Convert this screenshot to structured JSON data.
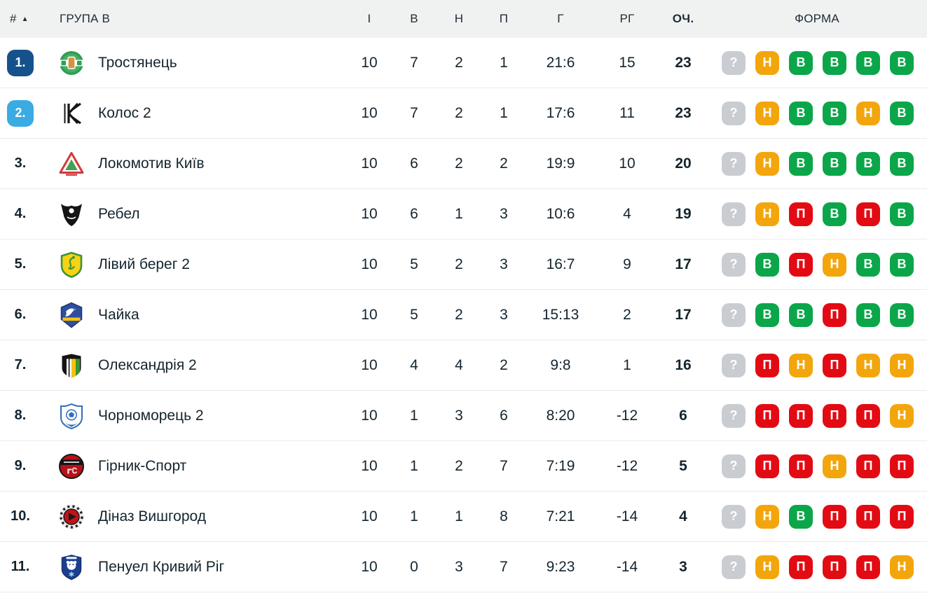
{
  "header": {
    "rank_label": "#",
    "sort_icon": "▲",
    "group_label": "ГРУПА В",
    "columns": [
      "І",
      "В",
      "Н",
      "П",
      "Г",
      "РГ",
      "ОЧ.",
      "ФОРМА"
    ]
  },
  "colors": {
    "win": "#0ba64a",
    "draw": "#f3a60c",
    "loss": "#e30b13",
    "unknown": "#c9cdd2",
    "rank1": "#15528c",
    "rank2": "#3babe3",
    "text": "#14242e",
    "header_bg": "#f0f1f1",
    "row_divider": "#eaebeb"
  },
  "form_legend": {
    "В": "win",
    "Н": "draw",
    "П": "loss",
    "?": "unknown"
  },
  "teams": [
    {
      "pos": "1.",
      "badge": "rank1",
      "logo": "trostianets",
      "name": "Тростянець",
      "played": "10",
      "wins": "7",
      "draws": "2",
      "losses": "1",
      "goals": "21:6",
      "gd": "15",
      "points": "23",
      "form": [
        "?",
        "Н",
        "В",
        "В",
        "В",
        "В"
      ]
    },
    {
      "pos": "2.",
      "badge": "rank2",
      "logo": "kolos",
      "name": "Колос 2",
      "played": "10",
      "wins": "7",
      "draws": "2",
      "losses": "1",
      "goals": "17:6",
      "gd": "11",
      "points": "23",
      "form": [
        "?",
        "Н",
        "В",
        "В",
        "Н",
        "В"
      ]
    },
    {
      "pos": "3.",
      "badge": null,
      "logo": "lokomotyv",
      "name": "Локомотив Київ",
      "played": "10",
      "wins": "6",
      "draws": "2",
      "losses": "2",
      "goals": "19:9",
      "gd": "10",
      "points": "20",
      "form": [
        "?",
        "Н",
        "В",
        "В",
        "В",
        "В"
      ]
    },
    {
      "pos": "4.",
      "badge": null,
      "logo": "rebel",
      "name": "Ребел",
      "played": "10",
      "wins": "6",
      "draws": "1",
      "losses": "3",
      "goals": "10:6",
      "gd": "4",
      "points": "19",
      "form": [
        "?",
        "Н",
        "П",
        "В",
        "П",
        "В"
      ]
    },
    {
      "pos": "5.",
      "badge": null,
      "logo": "livyibereh",
      "name": "Лівий берег 2",
      "played": "10",
      "wins": "5",
      "draws": "2",
      "losses": "3",
      "goals": "16:7",
      "gd": "9",
      "points": "17",
      "form": [
        "?",
        "В",
        "П",
        "Н",
        "В",
        "В"
      ]
    },
    {
      "pos": "6.",
      "badge": null,
      "logo": "chaika",
      "name": "Чайка",
      "played": "10",
      "wins": "5",
      "draws": "2",
      "losses": "3",
      "goals": "15:13",
      "gd": "2",
      "points": "17",
      "form": [
        "?",
        "В",
        "В",
        "П",
        "В",
        "В"
      ]
    },
    {
      "pos": "7.",
      "badge": null,
      "logo": "oleksandriia",
      "name": "Олександрія 2",
      "played": "10",
      "wins": "4",
      "draws": "4",
      "losses": "2",
      "goals": "9:8",
      "gd": "1",
      "points": "16",
      "form": [
        "?",
        "П",
        "Н",
        "П",
        "Н",
        "Н"
      ]
    },
    {
      "pos": "8.",
      "badge": null,
      "logo": "chornomorets",
      "name": "Чорноморець 2",
      "played": "10",
      "wins": "1",
      "draws": "3",
      "losses": "6",
      "goals": "8:20",
      "gd": "-12",
      "points": "6",
      "form": [
        "?",
        "П",
        "П",
        "П",
        "П",
        "Н"
      ]
    },
    {
      "pos": "9.",
      "badge": null,
      "logo": "hirnyk",
      "name": "Гірник-Спорт",
      "played": "10",
      "wins": "1",
      "draws": "2",
      "losses": "7",
      "goals": "7:19",
      "gd": "-12",
      "points": "5",
      "form": [
        "?",
        "П",
        "П",
        "Н",
        "П",
        "П"
      ]
    },
    {
      "pos": "10.",
      "badge": null,
      "logo": "dinaz",
      "name": "Діназ Вишгород",
      "played": "10",
      "wins": "1",
      "draws": "1",
      "losses": "8",
      "goals": "7:21",
      "gd": "-14",
      "points": "4",
      "form": [
        "?",
        "Н",
        "В",
        "П",
        "П",
        "П"
      ]
    },
    {
      "pos": "11.",
      "badge": null,
      "logo": "penuel",
      "name": "Пенуел Кривий Ріг",
      "played": "10",
      "wins": "0",
      "draws": "3",
      "losses": "7",
      "goals": "9:23",
      "gd": "-14",
      "points": "3",
      "form": [
        "?",
        "Н",
        "П",
        "П",
        "П",
        "Н"
      ]
    }
  ]
}
